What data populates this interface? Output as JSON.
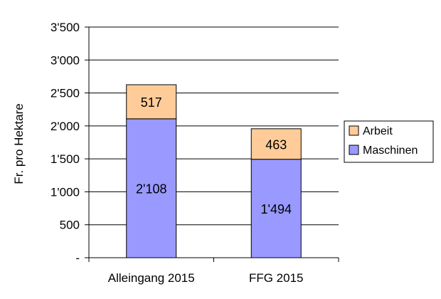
{
  "chart_data": {
    "type": "bar",
    "stacked": true,
    "categories": [
      "Alleingang 2015",
      "FFG 2015"
    ],
    "series": [
      {
        "name": "Maschinen",
        "values": [
          2108,
          1494
        ],
        "labels": [
          "2'108",
          "1'494"
        ],
        "color": "#9999ff"
      },
      {
        "name": "Arbeit",
        "values": [
          517,
          463
        ],
        "labels": [
          "517",
          "463"
        ],
        "color": "#ffcc99"
      }
    ],
    "ylabel": "Fr. pro Hektare",
    "xlabel": "",
    "ylim": [
      0,
      3500
    ],
    "yticks": [
      0,
      500,
      1000,
      1500,
      2000,
      2500,
      3000,
      3500
    ],
    "ytick_labels": [
      "-",
      "500",
      "1'000",
      "1'500",
      "2'000",
      "2'500",
      "3'000",
      "3'500"
    ],
    "grid": true,
    "legend_position": "right",
    "legend_order": [
      "Arbeit",
      "Maschinen"
    ]
  }
}
